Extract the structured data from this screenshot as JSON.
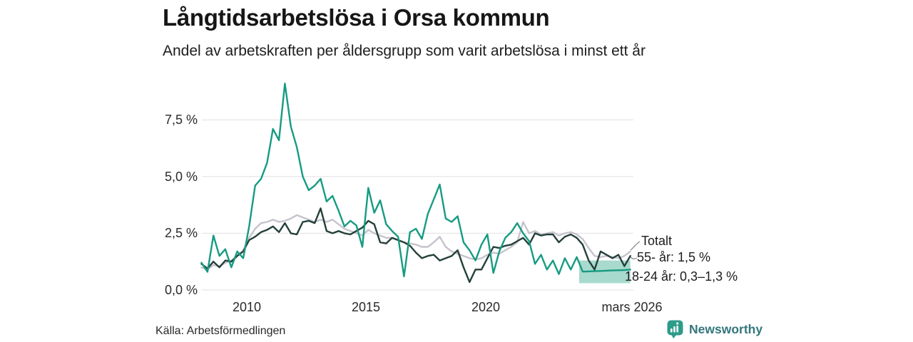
{
  "header": {
    "title": "Långtidsarbetslösa i Orsa kommun",
    "subtitle": "Andel av arbetskraften per åldersgrupp som varit arbetslösa i minst ett år"
  },
  "colors": {
    "teal_line": "#169b82",
    "dark_line": "#24403b",
    "gray_line": "#c6c3cc",
    "band": "#a8dacd",
    "grid": "#e0e0e0",
    "leader": "#8a8a8a",
    "brand": "#33767c",
    "brand_icon_bg": "#2d9b8a"
  },
  "chart_data": {
    "type": "line",
    "title": "Långtidsarbetslösa i Orsa kommun",
    "subtitle": "Andel av arbetskraften per åldersgrupp som varit arbetslösa i minst ett år",
    "grid": true,
    "legend_position": "end-of-line-labels",
    "xlim": [
      2008.1,
      2026.25
    ],
    "ylim": [
      0,
      9.5
    ],
    "x_axis": {
      "ticks": [
        {
          "label": "2010",
          "year": 2010
        },
        {
          "label": "2015",
          "year": 2015
        },
        {
          "label": "2020",
          "year": 2020
        },
        {
          "label": "mars 2026",
          "year": 2026.17
        }
      ]
    },
    "y_axis": {
      "unit": "%",
      "ticks": [
        {
          "label": "0,0 %",
          "value": 0
        },
        {
          "label": "2,5 %",
          "value": 2.5
        },
        {
          "label": "5,0 %",
          "value": 5
        },
        {
          "label": "7,5 %",
          "value": 7.5
        }
      ]
    },
    "x_start": 2008.1,
    "x_step": 0.25,
    "series": [
      {
        "name": "Totalt",
        "color": "#c6c3cc",
        "values": [
          1.0,
          0.9,
          1.1,
          1.05,
          1.2,
          1.3,
          1.5,
          1.75,
          2.3,
          2.7,
          2.95,
          3.0,
          3.1,
          3.0,
          3.05,
          3.15,
          3.3,
          3.2,
          3.1,
          3.0,
          3.1,
          3.0,
          3.1,
          2.9,
          2.7,
          2.6,
          2.5,
          2.4,
          2.65,
          2.5,
          2.4,
          2.3,
          2.3,
          2.2,
          2.1,
          2.05,
          2.0,
          1.9,
          1.9,
          2.1,
          2.35,
          1.9,
          1.7,
          1.6,
          1.5,
          1.4,
          1.35,
          1.4,
          1.55,
          1.65,
          1.6,
          1.75,
          1.9,
          2.1,
          3.0,
          2.5,
          2.6,
          2.45,
          2.5,
          2.55,
          2.4,
          2.5,
          2.55,
          2.45,
          2.25,
          1.85,
          1.5,
          1.45,
          1.5,
          1.45,
          1.4,
          1.5,
          1.7
        ]
      },
      {
        "name": "55- år",
        "color": "#24403b",
        "values": [
          1.15,
          0.95,
          1.25,
          1.0,
          1.3,
          1.25,
          1.5,
          1.7,
          2.2,
          2.35,
          2.55,
          2.65,
          2.8,
          2.55,
          2.95,
          2.5,
          2.45,
          3.0,
          3.05,
          2.95,
          3.6,
          2.6,
          2.5,
          2.6,
          2.5,
          2.45,
          2.6,
          2.75,
          3.05,
          2.9,
          2.1,
          2.05,
          2.3,
          2.2,
          2.1,
          1.95,
          1.65,
          1.4,
          1.5,
          1.55,
          1.3,
          1.4,
          1.5,
          1.75,
          1.0,
          0.35,
          0.9,
          0.9,
          1.4,
          1.9,
          1.85,
          1.95,
          2.0,
          2.15,
          2.3,
          2.0,
          2.5,
          2.4,
          2.45,
          2.45,
          2.1,
          2.35,
          2.45,
          2.3,
          2.0,
          1.3,
          0.9,
          1.7,
          1.55,
          1.4,
          1.55,
          1.05,
          1.5
        ]
      },
      {
        "name": "18-24 år",
        "color": "#169b82",
        "values": [
          1.2,
          0.8,
          2.4,
          1.5,
          1.8,
          1.0,
          1.7,
          1.4,
          2.8,
          4.6,
          4.9,
          5.6,
          7.1,
          6.6,
          9.1,
          7.2,
          6.3,
          5.0,
          4.4,
          4.6,
          4.9,
          3.9,
          4.15,
          3.5,
          2.8,
          3.05,
          2.85,
          1.9,
          4.5,
          3.4,
          3.95,
          2.9,
          2.6,
          2.35,
          0.6,
          2.55,
          2.7,
          2.25,
          3.35,
          4.0,
          4.65,
          3.15,
          3.0,
          3.25,
          2.1,
          1.75,
          1.3,
          2.0,
          2.45,
          0.75,
          1.7,
          2.3,
          2.55,
          2.95,
          2.5,
          2.15,
          1.15,
          1.55,
          0.9,
          1.3,
          0.7,
          1.4,
          0.9,
          1.45,
          0.81,
          0.82,
          0.83,
          0.84,
          0.85,
          0.86,
          0.87,
          0.88,
          0.9
        ]
      }
    ],
    "forecast_band": {
      "series": "18-24 år",
      "x_start": 2023.95,
      "x_end": 2026.1,
      "low": 0.3,
      "high": 1.3,
      "color": "#a8dacd"
    },
    "annotations": [
      {
        "text": "Totalt"
      },
      {
        "text": "55- år: 1,5 %"
      },
      {
        "text": "18-24 år: 0,3–1,3 %"
      }
    ]
  },
  "footer": {
    "source": "Källa: Arbetsförmedlingen",
    "brand": "Newsworthy",
    "brand_icon": "bar-chart-speech-bubble-icon"
  }
}
